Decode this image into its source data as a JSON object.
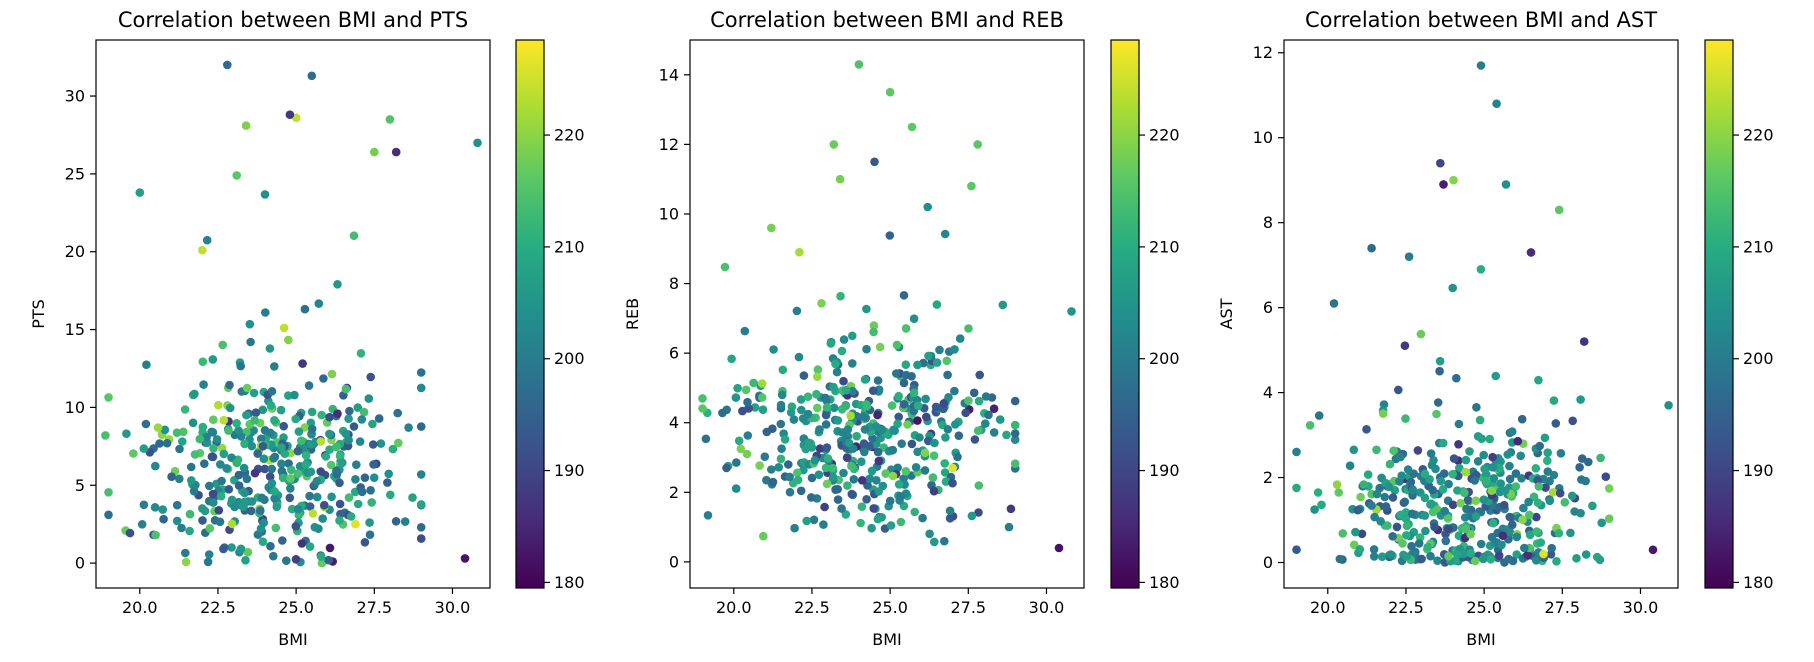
{
  "chart_data": [
    {
      "type": "scatter",
      "title": "Correlation between BMI and PTS",
      "xlabel": "BMI",
      "ylabel": "PTS",
      "xlim": [
        18.6,
        31.2
      ],
      "ylim": [
        -1.6,
        33.6
      ],
      "xticks": [
        20.0,
        22.5,
        25.0,
        27.5,
        30.0
      ],
      "xtick_labels": [
        "20.0",
        "22.5",
        "25.0",
        "27.5",
        "30.0"
      ],
      "yticks": [
        0,
        5,
        10,
        15,
        20,
        25,
        30
      ],
      "ytick_labels": [
        "0",
        "5",
        "10",
        "15",
        "20",
        "25",
        "30"
      ],
      "colorbar": {
        "colormap": "viridis",
        "range": [
          179.5,
          228.5
        ],
        "ticks": [
          180,
          190,
          200,
          210,
          220
        ],
        "tick_labels": [
          "180",
          "190",
          "200",
          "210",
          "220"
        ]
      },
      "grid": false,
      "seed": 11,
      "n_points": 430,
      "y_center": 5.5,
      "y_spread": 4.2,
      "y_scale": 3.2,
      "y_max": 29.5,
      "y_min": 0.0,
      "highlights": [
        {
          "x": 22.8,
          "y": 32.0,
          "c": 197
        },
        {
          "x": 25.5,
          "y": 31.3,
          "c": 197
        },
        {
          "x": 30.8,
          "y": 27.0,
          "c": 204
        },
        {
          "x": 28.0,
          "y": 28.5,
          "c": 215
        },
        {
          "x": 28.2,
          "y": 26.4,
          "c": 186
        },
        {
          "x": 27.5,
          "y": 26.4,
          "c": 218
        },
        {
          "x": 24.8,
          "y": 28.8,
          "c": 188
        },
        {
          "x": 30.4,
          "y": 0.3,
          "c": 182
        },
        {
          "x": 26.9,
          "y": 2.5,
          "c": 226
        },
        {
          "x": 22.0,
          "y": 20.1,
          "c": 224
        },
        {
          "x": 20.0,
          "y": 23.8,
          "c": 207
        },
        {
          "x": 18.9,
          "y": 8.2,
          "c": 214
        },
        {
          "x": 29.0,
          "y": 2.3,
          "c": 197
        },
        {
          "x": 23.1,
          "y": 24.9,
          "c": 216
        },
        {
          "x": 23.4,
          "y": 28.1,
          "c": 219
        }
      ]
    },
    {
      "type": "scatter",
      "title": "Correlation between BMI and REB",
      "xlabel": "BMI",
      "ylabel": "REB",
      "xlim": [
        18.6,
        31.2
      ],
      "ylim": [
        -0.75,
        15.0
      ],
      "xticks": [
        20.0,
        22.5,
        25.0,
        27.5,
        30.0
      ],
      "xtick_labels": [
        "20.0",
        "22.5",
        "25.0",
        "27.5",
        "30.0"
      ],
      "yticks": [
        0,
        2,
        4,
        6,
        8,
        10,
        12,
        14
      ],
      "ytick_labels": [
        "0",
        "2",
        "4",
        "6",
        "8",
        "10",
        "12",
        "14"
      ],
      "colorbar": {
        "colormap": "viridis",
        "range": [
          179.5,
          228.5
        ],
        "ticks": [
          180,
          190,
          200,
          210,
          220
        ],
        "tick_labels": [
          "180",
          "190",
          "200",
          "210",
          "220"
        ]
      },
      "grid": false,
      "seed": 23,
      "n_points": 430,
      "y_center": 3.3,
      "y_spread": 1.8,
      "y_scale": 1.2,
      "y_max": 12.5,
      "y_min": 0.0,
      "highlights": [
        {
          "x": 24.0,
          "y": 14.3,
          "c": 215
        },
        {
          "x": 25.0,
          "y": 13.5,
          "c": 216
        },
        {
          "x": 25.7,
          "y": 12.5,
          "c": 216
        },
        {
          "x": 23.2,
          "y": 12.0,
          "c": 217
        },
        {
          "x": 27.8,
          "y": 12.0,
          "c": 216
        },
        {
          "x": 24.5,
          "y": 11.5,
          "c": 193
        },
        {
          "x": 30.8,
          "y": 7.2,
          "c": 205
        },
        {
          "x": 30.4,
          "y": 0.4,
          "c": 182
        },
        {
          "x": 28.8,
          "y": 1.0,
          "c": 200
        },
        {
          "x": 27.0,
          "y": 2.7,
          "c": 226
        },
        {
          "x": 22.1,
          "y": 8.9,
          "c": 222
        },
        {
          "x": 21.2,
          "y": 9.6,
          "c": 218
        },
        {
          "x": 19.0,
          "y": 4.7,
          "c": 214
        },
        {
          "x": 27.6,
          "y": 10.8,
          "c": 216
        },
        {
          "x": 26.2,
          "y": 10.2,
          "c": 204
        },
        {
          "x": 23.4,
          "y": 11.0,
          "c": 218
        }
      ]
    },
    {
      "type": "scatter",
      "title": "Correlation between BMI and AST",
      "xlabel": "BMI",
      "ylabel": "AST",
      "xlim": [
        18.6,
        31.2
      ],
      "ylim": [
        -0.6,
        12.3
      ],
      "xticks": [
        20.0,
        22.5,
        25.0,
        27.5,
        30.0
      ],
      "xtick_labels": [
        "20.0",
        "22.5",
        "25.0",
        "27.5",
        "30.0"
      ],
      "yticks": [
        0,
        2,
        4,
        6,
        8,
        10,
        12
      ],
      "ytick_labels": [
        "0",
        "2",
        "4",
        "6",
        "8",
        "10",
        "12"
      ],
      "colorbar": {
        "colormap": "viridis",
        "range": [
          179.5,
          228.5
        ],
        "ticks": [
          180,
          190,
          200,
          210,
          220
        ],
        "tick_labels": [
          "180",
          "190",
          "200",
          "210",
          "220"
        ]
      },
      "grid": false,
      "seed": 37,
      "n_points": 430,
      "y_center": 1.1,
      "y_spread": 1.2,
      "y_scale": 1.3,
      "y_max": 9.0,
      "y_min": 0.0,
      "highlights": [
        {
          "x": 24.9,
          "y": 11.7,
          "c": 200
        },
        {
          "x": 25.4,
          "y": 10.8,
          "c": 201
        },
        {
          "x": 23.6,
          "y": 9.4,
          "c": 190
        },
        {
          "x": 23.7,
          "y": 8.9,
          "c": 184
        },
        {
          "x": 25.7,
          "y": 8.9,
          "c": 204
        },
        {
          "x": 27.4,
          "y": 8.3,
          "c": 216
        },
        {
          "x": 26.5,
          "y": 7.3,
          "c": 186
        },
        {
          "x": 30.9,
          "y": 3.7,
          "c": 204
        },
        {
          "x": 30.4,
          "y": 0.3,
          "c": 183
        },
        {
          "x": 26.9,
          "y": 0.2,
          "c": 226
        },
        {
          "x": 28.2,
          "y": 5.2,
          "c": 187
        },
        {
          "x": 20.2,
          "y": 6.1,
          "c": 198
        },
        {
          "x": 21.4,
          "y": 7.4,
          "c": 197
        },
        {
          "x": 22.6,
          "y": 7.2,
          "c": 200
        }
      ]
    }
  ]
}
